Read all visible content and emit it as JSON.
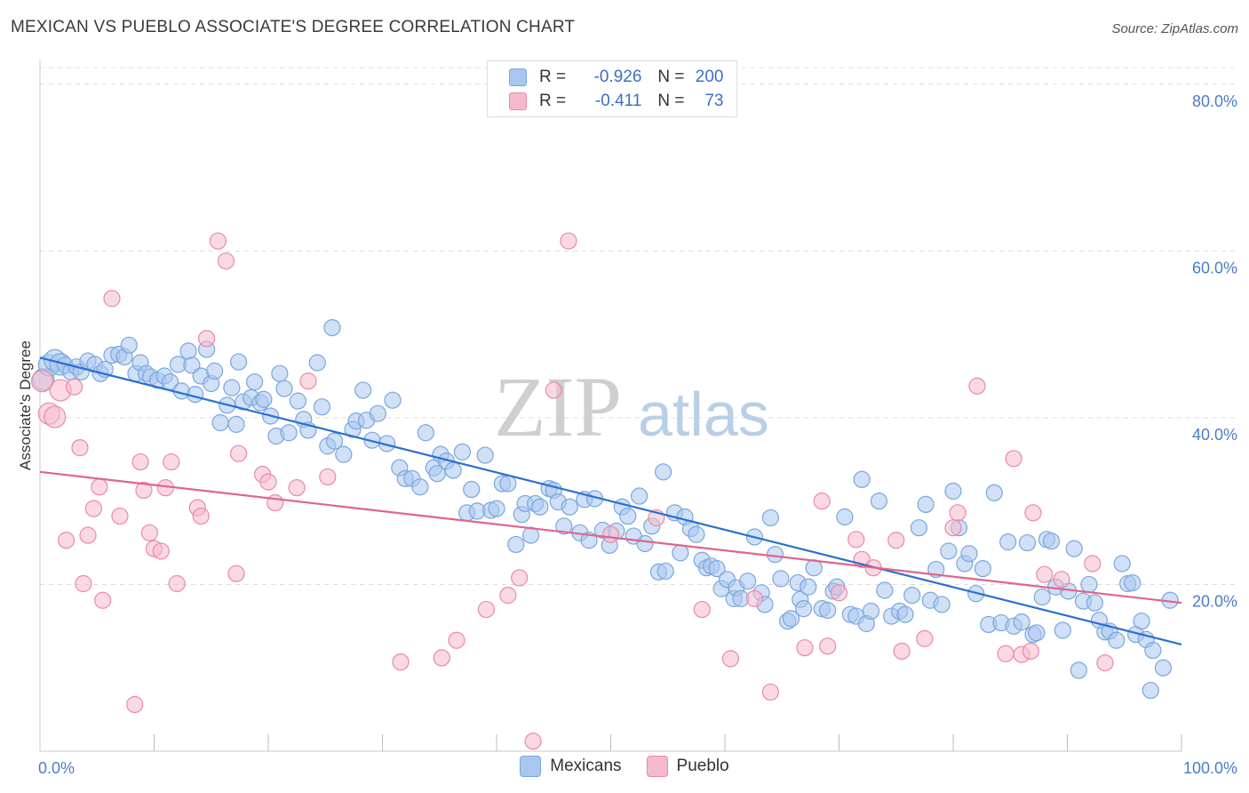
{
  "title": "MEXICAN VS PUEBLO ASSOCIATE'S DEGREE CORRELATION CHART",
  "source": "Source: ZipAtlas.com",
  "watermark": {
    "part1": "ZIP",
    "part2": "atlas"
  },
  "legend": {
    "rows": [
      {
        "r_label": "R =",
        "r_value": "-0.926",
        "n_label": "N =",
        "n_value": "200",
        "color": "#a9c7ee",
        "border": "#7aa6dd"
      },
      {
        "r_label": "R =",
        "r_value": "-0.411",
        "n_label": "N =",
        "n_value": "73",
        "color": "#f6b9cc",
        "border": "#e88aa8"
      }
    ]
  },
  "bottom_legend": [
    {
      "label": "Mexicans",
      "color": "#a9c7ee",
      "border": "#7aa6dd"
    },
    {
      "label": "Pueblo",
      "color": "#f6b9cc",
      "border": "#e88aa8"
    }
  ],
  "chart_data": {
    "type": "scatter",
    "ylabel": "Associate's Degree",
    "x_tick_labels": [
      "0.0%",
      "100.0%"
    ],
    "y_tick_labels": [
      "20.0%",
      "40.0%",
      "60.0%",
      "80.0%"
    ],
    "y_ticks": [
      20,
      40,
      60,
      80
    ],
    "xlim": [
      0,
      100
    ],
    "ylim": [
      0,
      82
    ],
    "grid": true,
    "series": [
      {
        "name": "Mexicans",
        "color": "#7aa6dd",
        "fill": "#a9c7ee",
        "line_color": "#2b6fd1",
        "trend": {
          "x": [
            0,
            100
          ],
          "y": [
            47.2,
            12.8
          ]
        },
        "points": [
          [
            0.3,
            44.6
          ],
          [
            0.8,
            46.3
          ],
          [
            1.3,
            46.9
          ],
          [
            1.8,
            46.4
          ],
          [
            2.2,
            46.3
          ],
          [
            2.7,
            45.5
          ],
          [
            3.2,
            46.1
          ],
          [
            3.6,
            45.5
          ],
          [
            4.2,
            46.8
          ],
          [
            4.8,
            46.4
          ],
          [
            5.3,
            45.3
          ],
          [
            5.7,
            45.8
          ],
          [
            6.3,
            47.5
          ],
          [
            6.9,
            47.6
          ],
          [
            7.4,
            47.3
          ],
          [
            7.8,
            48.7
          ],
          [
            8.4,
            45.3
          ],
          [
            8.8,
            46.6
          ],
          [
            9.3,
            45.3
          ],
          [
            9.7,
            44.9
          ],
          [
            10.3,
            44.5
          ],
          [
            10.9,
            45.0
          ],
          [
            11.4,
            44.3
          ],
          [
            12.1,
            46.4
          ],
          [
            12.4,
            43.2
          ],
          [
            13.0,
            48.0
          ],
          [
            13.3,
            46.3
          ],
          [
            13.6,
            42.8
          ],
          [
            14.1,
            45.0
          ],
          [
            14.6,
            48.2
          ],
          [
            15.0,
            44.1
          ],
          [
            15.3,
            45.6
          ],
          [
            15.8,
            39.4
          ],
          [
            16.4,
            41.5
          ],
          [
            16.8,
            43.6
          ],
          [
            17.2,
            39.2
          ],
          [
            17.4,
            46.7
          ],
          [
            17.8,
            41.9
          ],
          [
            18.5,
            42.4
          ],
          [
            18.8,
            44.3
          ],
          [
            19.3,
            41.8
          ],
          [
            19.6,
            42.2
          ],
          [
            20.2,
            40.2
          ],
          [
            20.7,
            37.8
          ],
          [
            21.0,
            45.3
          ],
          [
            21.4,
            43.5
          ],
          [
            21.8,
            38.2
          ],
          [
            22.6,
            42.0
          ],
          [
            23.1,
            39.8
          ],
          [
            23.5,
            38.5
          ],
          [
            24.3,
            46.6
          ],
          [
            24.7,
            41.3
          ],
          [
            25.2,
            36.6
          ],
          [
            25.6,
            50.8
          ],
          [
            25.8,
            37.2
          ],
          [
            26.6,
            35.6
          ],
          [
            27.4,
            38.6
          ],
          [
            27.7,
            39.6
          ],
          [
            28.3,
            43.3
          ],
          [
            28.6,
            39.7
          ],
          [
            29.1,
            37.3
          ],
          [
            29.6,
            40.5
          ],
          [
            30.4,
            36.9
          ],
          [
            30.9,
            42.1
          ],
          [
            31.5,
            34.0
          ],
          [
            32.0,
            32.7
          ],
          [
            32.6,
            32.7
          ],
          [
            33.3,
            31.7
          ],
          [
            33.8,
            38.2
          ],
          [
            34.5,
            34.0
          ],
          [
            34.8,
            33.3
          ],
          [
            35.1,
            35.6
          ],
          [
            35.6,
            34.8
          ],
          [
            36.2,
            33.7
          ],
          [
            37.0,
            35.9
          ],
          [
            37.4,
            28.6
          ],
          [
            37.8,
            31.4
          ],
          [
            38.3,
            28.8
          ],
          [
            39.0,
            35.5
          ],
          [
            39.5,
            28.9
          ],
          [
            40.0,
            29.1
          ],
          [
            40.5,
            32.1
          ],
          [
            41.0,
            32.1
          ],
          [
            41.7,
            24.8
          ],
          [
            42.2,
            28.4
          ],
          [
            42.5,
            29.7
          ],
          [
            43.0,
            25.9
          ],
          [
            43.4,
            29.7
          ],
          [
            43.8,
            29.3
          ],
          [
            44.6,
            31.5
          ],
          [
            45.0,
            31.3
          ],
          [
            45.4,
            29.9
          ],
          [
            45.9,
            27.0
          ],
          [
            46.4,
            29.3
          ],
          [
            47.3,
            26.2
          ],
          [
            47.7,
            30.2
          ],
          [
            48.1,
            25.3
          ],
          [
            48.6,
            30.3
          ],
          [
            49.3,
            26.5
          ],
          [
            49.9,
            24.7
          ],
          [
            50.5,
            26.4
          ],
          [
            51.0,
            29.3
          ],
          [
            51.5,
            28.2
          ],
          [
            52.0,
            25.8
          ],
          [
            52.5,
            30.6
          ],
          [
            53.0,
            24.9
          ],
          [
            53.6,
            27.0
          ],
          [
            54.2,
            21.5
          ],
          [
            54.6,
            33.5
          ],
          [
            54.8,
            21.6
          ],
          [
            55.6,
            28.6
          ],
          [
            56.1,
            23.8
          ],
          [
            56.5,
            28.1
          ],
          [
            57.0,
            26.7
          ],
          [
            57.5,
            26.0
          ],
          [
            58.0,
            22.9
          ],
          [
            58.4,
            22.0
          ],
          [
            58.8,
            22.2
          ],
          [
            59.3,
            21.9
          ],
          [
            59.7,
            19.5
          ],
          [
            60.2,
            20.6
          ],
          [
            60.8,
            18.3
          ],
          [
            61.0,
            19.6
          ],
          [
            61.4,
            18.3
          ],
          [
            62.0,
            20.4
          ],
          [
            62.6,
            25.7
          ],
          [
            63.2,
            19.0
          ],
          [
            63.5,
            17.6
          ],
          [
            64.0,
            28.0
          ],
          [
            64.4,
            23.6
          ],
          [
            64.9,
            20.7
          ],
          [
            65.5,
            15.6
          ],
          [
            65.8,
            15.9
          ],
          [
            66.4,
            20.2
          ],
          [
            66.6,
            18.2
          ],
          [
            66.9,
            17.1
          ],
          [
            67.3,
            19.7
          ],
          [
            67.8,
            22.0
          ],
          [
            68.5,
            17.1
          ],
          [
            69.0,
            16.9
          ],
          [
            69.5,
            19.2
          ],
          [
            69.8,
            19.7
          ],
          [
            70.5,
            28.1
          ],
          [
            71.0,
            16.4
          ],
          [
            71.5,
            16.2
          ],
          [
            72.0,
            32.6
          ],
          [
            72.4,
            15.3
          ],
          [
            72.8,
            16.8
          ],
          [
            73.5,
            30.0
          ],
          [
            74.0,
            19.3
          ],
          [
            74.6,
            16.2
          ],
          [
            75.3,
            16.8
          ],
          [
            75.8,
            16.4
          ],
          [
            76.4,
            18.7
          ],
          [
            77.0,
            26.8
          ],
          [
            77.6,
            29.6
          ],
          [
            78.0,
            18.1
          ],
          [
            78.5,
            21.8
          ],
          [
            79.0,
            17.6
          ],
          [
            79.6,
            24.0
          ],
          [
            80.0,
            31.2
          ],
          [
            80.5,
            26.8
          ],
          [
            81.0,
            22.5
          ],
          [
            81.4,
            23.7
          ],
          [
            82.0,
            18.9
          ],
          [
            82.6,
            21.9
          ],
          [
            83.1,
            15.2
          ],
          [
            83.6,
            31.0
          ],
          [
            84.2,
            15.4
          ],
          [
            84.8,
            25.1
          ],
          [
            85.3,
            15.0
          ],
          [
            86.0,
            15.5
          ],
          [
            86.5,
            25.0
          ],
          [
            87.0,
            14.0
          ],
          [
            87.3,
            14.2
          ],
          [
            87.8,
            18.5
          ],
          [
            88.2,
            25.4
          ],
          [
            88.6,
            25.2
          ],
          [
            89.0,
            19.7
          ],
          [
            89.6,
            14.5
          ],
          [
            90.1,
            19.2
          ],
          [
            90.6,
            24.3
          ],
          [
            91.0,
            9.7
          ],
          [
            91.4,
            18.0
          ],
          [
            91.9,
            20.0
          ],
          [
            92.4,
            17.8
          ],
          [
            92.8,
            15.7
          ],
          [
            93.3,
            14.3
          ],
          [
            93.7,
            14.4
          ],
          [
            94.3,
            13.3
          ],
          [
            94.8,
            22.5
          ],
          [
            95.3,
            20.1
          ],
          [
            95.7,
            20.2
          ],
          [
            96.0,
            14.0
          ],
          [
            96.5,
            15.6
          ],
          [
            96.9,
            13.4
          ],
          [
            97.3,
            7.3
          ],
          [
            97.5,
            12.1
          ],
          [
            98.4,
            10.0
          ],
          [
            99.0,
            18.1
          ]
        ]
      },
      {
        "name": "Pueblo",
        "color": "#e88aa8",
        "fill": "#f6b9cc",
        "line_color": "#e0648f",
        "trend": {
          "x": [
            0,
            100
          ],
          "y": [
            33.5,
            17.8
          ]
        },
        "points": [
          [
            0.2,
            44.4
          ],
          [
            0.8,
            40.5
          ],
          [
            1.3,
            40.1
          ],
          [
            1.8,
            43.3
          ],
          [
            2.3,
            25.3
          ],
          [
            3.0,
            43.7
          ],
          [
            3.5,
            36.4
          ],
          [
            3.8,
            20.1
          ],
          [
            4.2,
            25.9
          ],
          [
            4.7,
            29.1
          ],
          [
            5.2,
            31.7
          ],
          [
            5.5,
            18.1
          ],
          [
            6.3,
            54.3
          ],
          [
            7.0,
            28.2
          ],
          [
            8.3,
            5.6
          ],
          [
            8.8,
            34.7
          ],
          [
            9.1,
            31.3
          ],
          [
            9.6,
            26.2
          ],
          [
            10.0,
            24.3
          ],
          [
            10.6,
            24.0
          ],
          [
            11.0,
            31.6
          ],
          [
            11.5,
            34.7
          ],
          [
            12.0,
            20.1
          ],
          [
            13.8,
            29.2
          ],
          [
            14.1,
            28.2
          ],
          [
            14.6,
            49.5
          ],
          [
            15.6,
            61.2
          ],
          [
            16.3,
            58.8
          ],
          [
            17.2,
            21.3
          ],
          [
            17.4,
            35.7
          ],
          [
            19.5,
            33.2
          ],
          [
            20.0,
            32.3
          ],
          [
            20.6,
            29.8
          ],
          [
            22.5,
            31.6
          ],
          [
            23.5,
            44.4
          ],
          [
            25.2,
            32.9
          ],
          [
            31.6,
            10.7
          ],
          [
            35.2,
            11.2
          ],
          [
            36.5,
            13.3
          ],
          [
            39.1,
            17.0
          ],
          [
            41.0,
            18.7
          ],
          [
            42.0,
            20.8
          ],
          [
            43.2,
            1.2
          ],
          [
            45.0,
            43.3
          ],
          [
            46.3,
            61.2
          ],
          [
            50.0,
            26.0
          ],
          [
            54.0,
            28.0
          ],
          [
            58.0,
            17.0
          ],
          [
            60.5,
            11.1
          ],
          [
            62.6,
            18.3
          ],
          [
            64.0,
            7.1
          ],
          [
            67.0,
            12.4
          ],
          [
            68.5,
            30.0
          ],
          [
            69.0,
            12.6
          ],
          [
            70.0,
            19.0
          ],
          [
            71.5,
            25.4
          ],
          [
            72.0,
            23.0
          ],
          [
            73.0,
            22.0
          ],
          [
            75.0,
            25.3
          ],
          [
            75.5,
            12.0
          ],
          [
            77.5,
            13.5
          ],
          [
            80.0,
            26.8
          ],
          [
            80.4,
            28.6
          ],
          [
            82.1,
            43.8
          ],
          [
            84.6,
            11.7
          ],
          [
            85.3,
            35.1
          ],
          [
            86.0,
            11.6
          ],
          [
            86.8,
            12.0
          ],
          [
            87.0,
            28.6
          ],
          [
            88.0,
            21.2
          ],
          [
            89.5,
            20.6
          ],
          [
            92.2,
            22.5
          ],
          [
            93.3,
            10.6
          ]
        ]
      }
    ]
  }
}
